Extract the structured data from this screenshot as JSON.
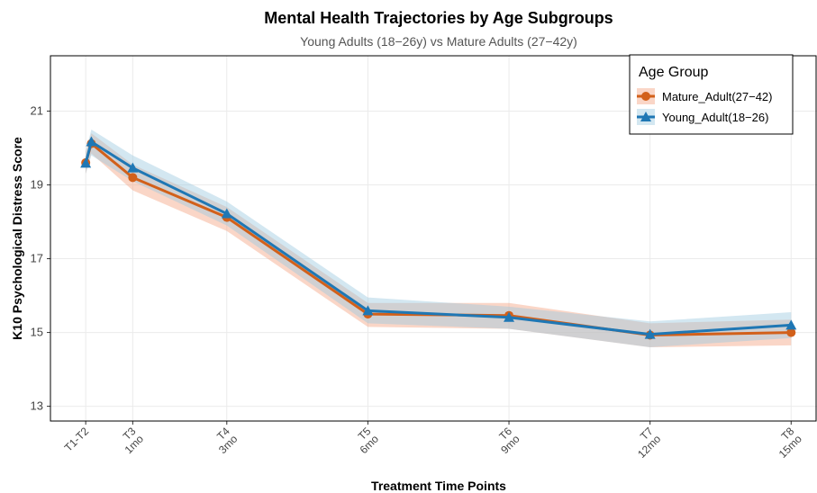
{
  "chart_data": {
    "type": "line",
    "title": "Mental Health Trajectories by Age Subgroups",
    "subtitle": "Young Adults (18−26y) vs Mature Adults (27−42y)",
    "x_label": "Treatment Time Points",
    "y_label": "K10 Psychological Distress Score",
    "x": [
      0,
      0.12,
      1,
      3,
      6,
      9,
      12,
      15
    ],
    "xlim": [
      -0.75,
      15.55
    ],
    "xticks": [
      {
        "value": 0,
        "label": [
          "T1-T2"
        ]
      },
      {
        "value": 1,
        "label": [
          "T3",
          "1mo"
        ]
      },
      {
        "value": 3,
        "label": [
          "T4",
          "3mo"
        ]
      },
      {
        "value": 6,
        "label": [
          "T5",
          "6mo"
        ]
      },
      {
        "value": 9,
        "label": [
          "T6",
          "9mo"
        ]
      },
      {
        "value": 12,
        "label": [
          "T7",
          "12mo"
        ]
      },
      {
        "value": 15,
        "label": [
          "T8",
          "15mo"
        ]
      }
    ],
    "ylim": [
      12.6,
      22.5
    ],
    "yticks": [
      13,
      15,
      17,
      19,
      21
    ],
    "grid": true,
    "legend_title": "Age Group",
    "legend": "top-right",
    "series": [
      {
        "name": "Mature_Adult(27−42)",
        "color": "#d2601a",
        "band_color": "#f4a582",
        "marker": "circle",
        "values": [
          19.6,
          20.12,
          19.2,
          18.12,
          15.5,
          15.46,
          14.93,
          15.0
        ],
        "upper": [
          19.9,
          20.4,
          19.55,
          18.4,
          15.8,
          15.8,
          15.25,
          15.35
        ],
        "lower": [
          19.3,
          19.85,
          18.85,
          17.75,
          15.15,
          15.1,
          14.6,
          14.65
        ]
      },
      {
        "name": "Young_Adult(18−26)",
        "color": "#1f77b4",
        "band_color": "#9ecae1",
        "marker": "triangle",
        "values": [
          19.59,
          20.17,
          19.46,
          18.22,
          15.59,
          15.41,
          14.95,
          15.2
        ],
        "upper": [
          19.9,
          20.5,
          19.8,
          18.55,
          15.95,
          15.7,
          15.3,
          15.55
        ],
        "lower": [
          19.3,
          19.8,
          19.1,
          17.9,
          15.25,
          15.1,
          14.6,
          14.85
        ]
      }
    ]
  }
}
